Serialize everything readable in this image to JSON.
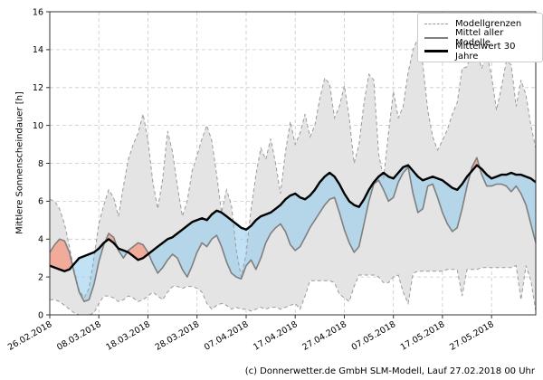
{
  "footer": {
    "credit": "(c) Donnerwetter.de GmbH SLM-Modell, Lauf 27.02.2018 00 Uhr"
  },
  "chart_data": {
    "type": "line",
    "title": "",
    "xlabel": "",
    "ylabel": "Mittlere Sonnenscheindauer [h]",
    "ylim": [
      0,
      16
    ],
    "ytick_labels": [
      "0",
      "2",
      "4",
      "6",
      "8",
      "10",
      "12",
      "14",
      "16"
    ],
    "ytick_values": [
      0,
      2,
      4,
      6,
      8,
      10,
      12,
      14,
      16
    ],
    "xtick_labels": [
      "26.02.2018",
      "08.03.2018",
      "18.03.2018",
      "28.03.2018",
      "07.04.2018",
      "17.04.2018",
      "27.04.2018",
      "07.05.2018",
      "17.05.2018",
      "27.05.2018"
    ],
    "xtick_days": [
      0,
      10,
      20,
      30,
      40,
      50,
      60,
      70,
      80,
      90
    ],
    "x_range_days": 100,
    "grid": true,
    "legend": {
      "position": "top-right",
      "items": [
        {
          "label": "Modellgrenzen",
          "style": "dashed-gray"
        },
        {
          "label": "Mittel aller Modelle",
          "style": "solid-gray"
        },
        {
          "label": "Mittelwert 30 Jahre",
          "style": "thick-black"
        }
      ]
    },
    "colors": {
      "bounds_fill": "#e4e4e4",
      "bounds_line": "#9a9a9a",
      "mean_line": "#7f7f7f",
      "mean30_line": "#000000",
      "below_normal_fill": "rgba(142,202,236,0.55)",
      "above_normal_fill": "rgba(252,124,92,0.55)",
      "grid_line": "#c9c9c9",
      "axis_line": "#333333"
    },
    "series": [
      {
        "name": "Modellgrenzen (oben)",
        "values": [
          6.1,
          6.0,
          5.6,
          4.8,
          3.6,
          2.3,
          1.3,
          0.9,
          1.4,
          3.0,
          4.8,
          5.8,
          6.6,
          6.2,
          5.2,
          6.8,
          8.2,
          9.0,
          9.6,
          10.6,
          9.2,
          7.0,
          5.6,
          7.2,
          9.7,
          8.6,
          6.8,
          5.2,
          6.0,
          7.6,
          8.4,
          9.3,
          10.0,
          9.2,
          7.4,
          5.4,
          6.6,
          5.8,
          3.4,
          2.0,
          3.2,
          5.6,
          7.4,
          8.8,
          8.2,
          9.3,
          8.0,
          6.4,
          8.6,
          10.2,
          9.0,
          9.6,
          10.6,
          9.4,
          10.0,
          11.4,
          12.5,
          12.2,
          10.4,
          11.0,
          12.1,
          10.4,
          8.0,
          9.0,
          11.2,
          12.7,
          12.4,
          8.5,
          7.2,
          9.6,
          11.8,
          10.4,
          11.0,
          12.8,
          14.0,
          14.6,
          13.2,
          10.8,
          9.4,
          8.7,
          9.2,
          9.8,
          10.6,
          11.2,
          13.0,
          13.1,
          14.0,
          13.9,
          13.0,
          13.8,
          12.6,
          10.8,
          12.0,
          13.4,
          13.2,
          11.0,
          12.4,
          11.6,
          10.0,
          8.8
        ]
      },
      {
        "name": "Modellgrenzen (unten)",
        "values": [
          0.8,
          0.8,
          0.7,
          0.5,
          0.3,
          0.1,
          0.0,
          0.0,
          0.0,
          0.1,
          0.6,
          1.0,
          1.0,
          0.9,
          0.7,
          0.8,
          1.0,
          0.9,
          0.7,
          0.8,
          1.0,
          1.2,
          1.0,
          0.8,
          1.2,
          1.5,
          1.5,
          1.4,
          1.5,
          1.5,
          1.4,
          1.2,
          0.6,
          0.3,
          0.5,
          0.6,
          0.5,
          0.3,
          0.4,
          0.3,
          0.3,
          0.2,
          0.3,
          0.4,
          0.3,
          0.4,
          0.4,
          0.3,
          0.4,
          0.5,
          0.6,
          0.3,
          1.0,
          1.8,
          1.8,
          1.8,
          1.8,
          1.8,
          1.7,
          1.1,
          0.9,
          0.7,
          1.5,
          2.1,
          2.1,
          2.1,
          2.1,
          2.0,
          1.7,
          1.7,
          2.0,
          2.1,
          1.2,
          0.6,
          2.2,
          2.3,
          2.3,
          2.3,
          2.3,
          2.3,
          2.3,
          2.4,
          2.4,
          2.4,
          1.0,
          2.4,
          2.4,
          2.4,
          2.5,
          2.5,
          2.5,
          2.5,
          2.5,
          2.5,
          2.5,
          2.6,
          0.8,
          2.6,
          1.8,
          0.2
        ]
      },
      {
        "name": "Mittel aller Modelle",
        "values": [
          3.3,
          3.7,
          4.0,
          3.9,
          3.3,
          2.2,
          1.2,
          0.7,
          0.8,
          1.6,
          2.8,
          3.7,
          4.3,
          4.1,
          3.4,
          3.0,
          3.4,
          3.6,
          3.8,
          3.7,
          3.3,
          2.7,
          2.2,
          2.5,
          2.9,
          3.2,
          3.0,
          2.4,
          2.0,
          2.6,
          3.3,
          3.8,
          3.6,
          4.0,
          4.2,
          3.6,
          2.8,
          2.2,
          2.0,
          1.9,
          2.6,
          2.9,
          2.4,
          3.0,
          3.8,
          4.3,
          4.6,
          4.8,
          4.4,
          3.7,
          3.4,
          3.6,
          4.1,
          4.6,
          5.0,
          5.4,
          5.8,
          6.1,
          6.2,
          5.4,
          4.5,
          3.8,
          3.3,
          3.6,
          4.8,
          6.0,
          6.9,
          7.1,
          6.6,
          6.0,
          6.2,
          7.0,
          7.5,
          7.8,
          6.4,
          5.4,
          5.6,
          6.8,
          6.9,
          6.2,
          5.4,
          4.8,
          4.4,
          4.6,
          5.6,
          6.8,
          7.8,
          8.3,
          7.4,
          6.8,
          6.8,
          6.9,
          6.9,
          6.8,
          6.5,
          6.8,
          6.4,
          5.8,
          4.8,
          3.8
        ]
      },
      {
        "name": "Mittelwert 30 Jahre",
        "values": [
          2.6,
          2.5,
          2.4,
          2.3,
          2.4,
          2.7,
          3.0,
          3.1,
          3.2,
          3.3,
          3.5,
          3.8,
          4.0,
          3.8,
          3.5,
          3.4,
          3.3,
          3.1,
          2.9,
          3.0,
          3.2,
          3.4,
          3.6,
          3.8,
          4.0,
          4.1,
          4.3,
          4.5,
          4.7,
          4.9,
          5.0,
          5.1,
          5.0,
          5.3,
          5.5,
          5.4,
          5.2,
          5.0,
          4.8,
          4.6,
          4.5,
          4.7,
          5.0,
          5.2,
          5.3,
          5.4,
          5.6,
          5.8,
          6.1,
          6.3,
          6.4,
          6.2,
          6.1,
          6.3,
          6.6,
          7.0,
          7.3,
          7.5,
          7.3,
          6.9,
          6.4,
          6.0,
          5.8,
          5.7,
          6.1,
          6.6,
          7.0,
          7.3,
          7.5,
          7.3,
          7.2,
          7.5,
          7.8,
          7.9,
          7.6,
          7.3,
          7.1,
          7.2,
          7.3,
          7.2,
          7.1,
          6.9,
          6.7,
          6.6,
          6.9,
          7.3,
          7.6,
          7.9,
          7.7,
          7.4,
          7.2,
          7.3,
          7.4,
          7.4,
          7.5,
          7.4,
          7.4,
          7.3,
          7.2,
          7.0
        ]
      }
    ]
  }
}
